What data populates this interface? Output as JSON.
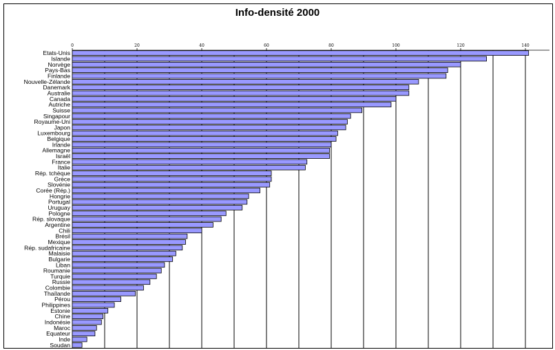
{
  "chart_data": {
    "type": "bar",
    "orientation": "horizontal",
    "title": "Info-densité 2000",
    "categories": [
      "Etats-Unis",
      "Islande",
      "Norvège",
      "Pays-Bas",
      "Finlande",
      "Nouvelle-Zélande",
      "Danemark",
      "Australie",
      "Canada",
      "Autriche",
      "Suisse",
      "Singapour",
      "Royaume-Uni",
      "Japon",
      "Luxembourg",
      "Belgique",
      "Irlande",
      "Allemagne",
      "Israël",
      "France",
      "Italie",
      "Rép. tchèque",
      "Grèce",
      "Slovénie",
      "Corée (Rép.)",
      "Hongrie",
      "Portugal",
      "Uruguay",
      "Pologne",
      "Rép. slovaque",
      "Argentine",
      "Chili",
      "Brésil",
      "Mexique",
      "Rép. sudafricaine",
      "Malaisie",
      "Bulgarie",
      "Liban",
      "Roumanie",
      "Turquie",
      "Russie",
      "Colombie",
      "Thaïlande",
      "Pérou",
      "Philippines",
      "Estonie",
      "Chine",
      "Indonésie",
      "Maroc",
      "Equateur",
      "Inde",
      "Soudan"
    ],
    "values": [
      141,
      128,
      120,
      116,
      115.5,
      107,
      104,
      104,
      100,
      98.5,
      89.5,
      86,
      85,
      84.5,
      82,
      81.5,
      80,
      79.5,
      79.5,
      72.5,
      72,
      61.5,
      61.5,
      61,
      58,
      54.5,
      54,
      52.5,
      47.5,
      46,
      43.5,
      40,
      35.5,
      35,
      34,
      32,
      31,
      28.5,
      27.5,
      26,
      24,
      22,
      19.5,
      15,
      13,
      11,
      9.5,
      9,
      7.5,
      7,
      4.5,
      3
    ],
    "xlim": [
      0,
      148
    ],
    "xticks": [
      0,
      20,
      40,
      60,
      80,
      100,
      120,
      140
    ],
    "xticks_position": "top",
    "vertical_gridlines": [
      10,
      20,
      30,
      40,
      50,
      60,
      70,
      80,
      90,
      100,
      110,
      120,
      130,
      140
    ],
    "grid": true,
    "legend": "none",
    "colors": {
      "bar_fill": "#9999ff",
      "bar_edge": "#000000",
      "gridline": "#000000"
    }
  }
}
